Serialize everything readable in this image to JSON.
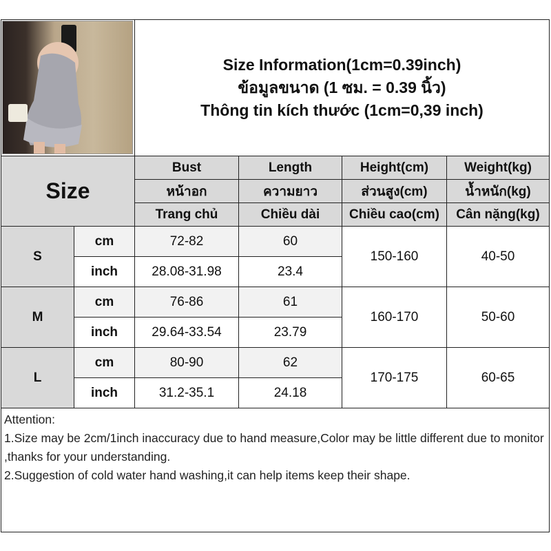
{
  "title": {
    "line1": "Size Information(1cm=0.39inch)",
    "line2": "ข้อมูลขนาด (1 ซม. = 0.39 นิ้ว)",
    "line3": "Thông tin kích thước (1cm=0,39 inch)"
  },
  "photo": {
    "description_icon": "product-photo"
  },
  "header": {
    "size_label": "Size",
    "columns": [
      {
        "en": "Bust",
        "th": "หน้าอก",
        "vi": "Trang chủ"
      },
      {
        "en": "Length",
        "th": "ความยาว",
        "vi": "Chiều dài"
      },
      {
        "en": "Height(cm)",
        "th": "ส่วนสูง(cm)",
        "vi": "Chiều cao(cm)"
      },
      {
        "en": "Weight(kg)",
        "th": "น้ำหนัก(kg)",
        "vi": "Cân nặng(kg)"
      }
    ]
  },
  "rows": [
    {
      "size": "S",
      "cm_label": "cm",
      "inch_label": "inch",
      "bust_cm": "72-82",
      "bust_inch": "28.08-31.98",
      "length_cm": "60",
      "length_inch": "23.4",
      "height": "150-160",
      "weight": "40-50"
    },
    {
      "size": "M",
      "cm_label": "cm",
      "inch_label": "inch",
      "bust_cm": "76-86",
      "bust_inch": "29.64-33.54",
      "length_cm": "61",
      "length_inch": "23.79",
      "height": "160-170",
      "weight": "50-60"
    },
    {
      "size": "L",
      "cm_label": "cm",
      "inch_label": "inch",
      "bust_cm": "80-90",
      "bust_inch": "31.2-35.1",
      "length_cm": "62",
      "length_inch": "24.18",
      "height": "170-175",
      "weight": "60-65"
    }
  ],
  "attention": {
    "heading": "Attention:",
    "line1": "1.Size may be 2cm/1inch inaccuracy due to hand measure,Color may be little different due to monitor ,thanks for your understanding.",
    "line2": "2.Suggestion of cold water hand washing,it can help items keep their shape."
  }
}
